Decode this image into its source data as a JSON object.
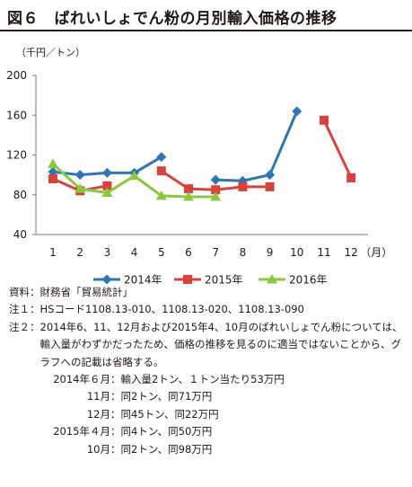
{
  "page": {
    "title": "図６　ばれいしょでん粉の月別輸入価格の推移",
    "unit": "（千円／トン）"
  },
  "chart_data": {
    "type": "line",
    "title": "図６　ばれいしょでん粉の月別輸入価格の推移",
    "ylabel": "（千円／トン）",
    "xlabel": "（月）",
    "categories": [
      "1",
      "2",
      "3",
      "4",
      "5",
      "6",
      "7",
      "8",
      "9",
      "10",
      "11",
      "12"
    ],
    "x_unit": "（月）",
    "ylim": [
      40,
      200
    ],
    "yticks": [
      40,
      80,
      120,
      160,
      200
    ],
    "grid": false,
    "legend_position": "bottom",
    "series": [
      {
        "name": "2014年",
        "color": "#2e75b6",
        "marker": "diamond",
        "values": [
          103,
          100,
          102,
          102,
          118,
          null,
          95,
          94,
          100,
          164,
          null,
          null
        ]
      },
      {
        "name": "2015年",
        "color": "#d9413c",
        "marker": "square",
        "values": [
          96,
          84,
          89,
          null,
          104,
          86,
          85,
          88,
          88,
          null,
          155,
          97
        ]
      },
      {
        "name": "2016年",
        "color": "#8dc63f",
        "marker": "triangle",
        "values": [
          111,
          86,
          82,
          99,
          79,
          78,
          78,
          null,
          null,
          null,
          null,
          null
        ]
      }
    ]
  },
  "notes": {
    "source_label": "資料：",
    "source": "財務省「貿易統計」",
    "note1_label": "注１：",
    "note1": "HSコード1108.13-010、1108.13-020、1108.13-090",
    "note2_label": "注２：",
    "note2": "2014年6、11、12月および2015年4、10月のばれいしょでん粉については、輸入量がわずかだったため、価格の推移を見るのに適当ではないことから、グラフへの記載は省略する。",
    "details": [
      {
        "left": "2014年６月",
        "text": "輸入量2トン、１トン当たり53万円"
      },
      {
        "left": "11月",
        "text": "同2トン、同71万円"
      },
      {
        "left": "12月",
        "text": "同45トン、同22万円"
      },
      {
        "left": "2015年４月",
        "text": "同4トン、同50万円"
      },
      {
        "left": "10月",
        "text": "同2トン、同98万円"
      }
    ],
    "detail_sep": "："
  }
}
